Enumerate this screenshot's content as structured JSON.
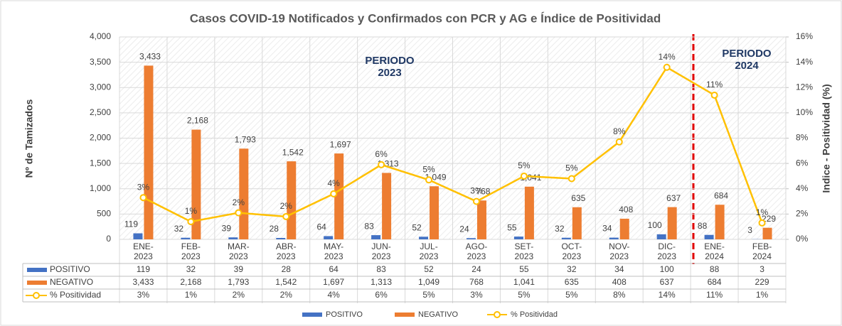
{
  "chart_data": {
    "type": "bar",
    "title": "Casos COVID-19 Notificados y Confirmados con PCR y AG e Índice de Positividad",
    "y_label": "Nº de Tamizados",
    "y2_label": "Indice - Positividad (%)",
    "annotations": [
      "PERIODO 2023",
      "PERIODO 2024"
    ],
    "categories": [
      "ENE-2023",
      "FEB-2023",
      "MAR-2023",
      "ABR-2023",
      "MAY-2023",
      "JUN-2023",
      "JUL-2023",
      "AGO-2023",
      "SET-2023",
      "OCT-2023",
      "NOV-2023",
      "DIC-2023",
      "ENE-2024",
      "FEB-2024"
    ],
    "series": [
      {
        "name": "POSITIVO",
        "color": "#4472c4",
        "values": [
          119,
          32,
          39,
          28,
          64,
          83,
          52,
          24,
          55,
          32,
          34,
          100,
          88,
          3
        ]
      },
      {
        "name": "NEGATIVO",
        "color": "#ed7d31",
        "values": [
          3433,
          2168,
          1793,
          1542,
          1697,
          1313,
          1049,
          768,
          1041,
          635,
          408,
          637,
          684,
          229
        ],
        "value_labels": [
          "3,433",
          "2,168",
          "1,793",
          "1,542",
          "1,697",
          "1,313",
          "1,049",
          "768",
          "1,041",
          "635",
          "408",
          "637",
          "684",
          "229"
        ]
      },
      {
        "name": "% Positividad",
        "color": "#ffc000",
        "type": "line",
        "axis": "y2",
        "values": [
          3.3,
          1.4,
          2.1,
          1.8,
          3.6,
          5.9,
          4.7,
          3.0,
          5.0,
          4.8,
          7.7,
          13.6,
          11.4,
          1.3
        ],
        "value_labels": [
          "3%",
          "1%",
          "2%",
          "2%",
          "4%",
          "6%",
          "5%",
          "3%",
          "5%",
          "5%",
          "8%",
          "14%",
          "11%",
          "1%"
        ]
      }
    ],
    "ylim": [
      0,
      4000
    ],
    "yticks": [
      0,
      500,
      {
        "value": 1000,
        "label": "1,000"
      },
      {
        "value": 1500,
        "label": "1,500"
      },
      {
        "value": 2000,
        "label": "2,000"
      },
      {
        "value": 2500,
        "label": "2,500"
      },
      {
        "value": 3000,
        "label": "3,000"
      },
      {
        "value": 3500,
        "label": "3,500"
      },
      {
        "value": 4000,
        "label": "4,000"
      }
    ],
    "y2lim": [
      0,
      16
    ],
    "y2ticks": [
      {
        "value": 0,
        "label": "0%"
      },
      {
        "value": 2,
        "label": "2%"
      },
      {
        "value": 4,
        "label": "4%"
      },
      {
        "value": 6,
        "label": "6%"
      },
      {
        "value": 8,
        "label": "8%"
      },
      {
        "value": 10,
        "label": "10%"
      },
      {
        "value": 12,
        "label": "12%"
      },
      {
        "value": 14,
        "label": "14%"
      },
      {
        "value": 16,
        "label": "16%"
      }
    ],
    "grid": true,
    "legend": "bottom"
  }
}
